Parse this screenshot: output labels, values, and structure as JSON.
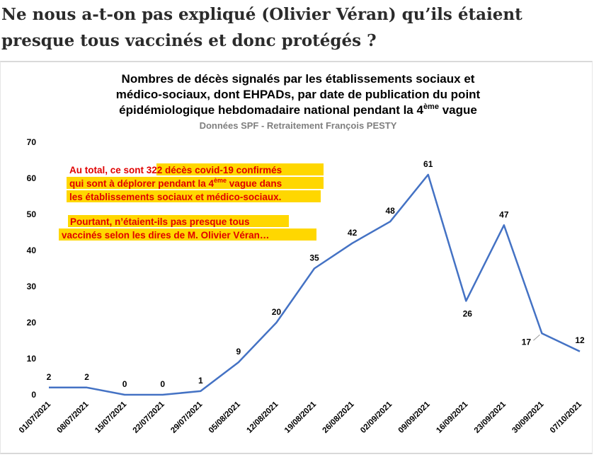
{
  "headline": {
    "line1": "Ne nous a-t-on pas expliqué (Olivier Véran) qu’ils étaient",
    "line2": "presque tous vaccinés et donc protégés ?"
  },
  "colors": {
    "line": "#4472c4",
    "highlight": "#ffd700",
    "annotation_text": "#e00000",
    "subtitle": "#7f7f7f"
  },
  "chart_data": {
    "type": "line",
    "title_lines": [
      "Nombres de décès signalés par les établissements sociaux et",
      "médico-sociaux, dont EHPADs, par date de publication du point",
      "épidémiologique hebdomadaire national pendant la 4"
    ],
    "title_superscript": "ème",
    "title_end": " vague",
    "subtitle": "Données SPF - Retraitement François PESTY",
    "categories": [
      "01/07/2021",
      "08/07/2021",
      "15/07/2021",
      "22/07/2021",
      "29/07/2021",
      "05/08/2021",
      "12/08/2021",
      "19/08/2021",
      "26/08/2021",
      "02/09/2021",
      "09/09/2021",
      "16/09/2021",
      "23/09/2021",
      "30/09/2021",
      "07/10/2021"
    ],
    "values": [
      2,
      2,
      0,
      0,
      1,
      9,
      20,
      35,
      42,
      48,
      61,
      26,
      47,
      17,
      12
    ],
    "ylim": [
      0,
      70
    ],
    "yticks": [
      0,
      10,
      20,
      30,
      40,
      50,
      60,
      70
    ],
    "grid": false,
    "legend": "none",
    "xlabel": "",
    "ylabel": "",
    "annotations": {
      "box1": {
        "line1_a": "Au total, ce sont ",
        "line1_b": "322 décès covid-19 confirmés",
        "line2_a": "qui sont à déplorer pendant la 4",
        "line2_sup": "ème",
        "line2_b": " vague dans",
        "line3": "les établissements sociaux et médico-sociaux."
      },
      "box2": {
        "line1": "Pourtant, n’étaient-ils pas presque tous",
        "line2": "vaccinés selon les dires de M. Olivier Véran…"
      }
    }
  }
}
